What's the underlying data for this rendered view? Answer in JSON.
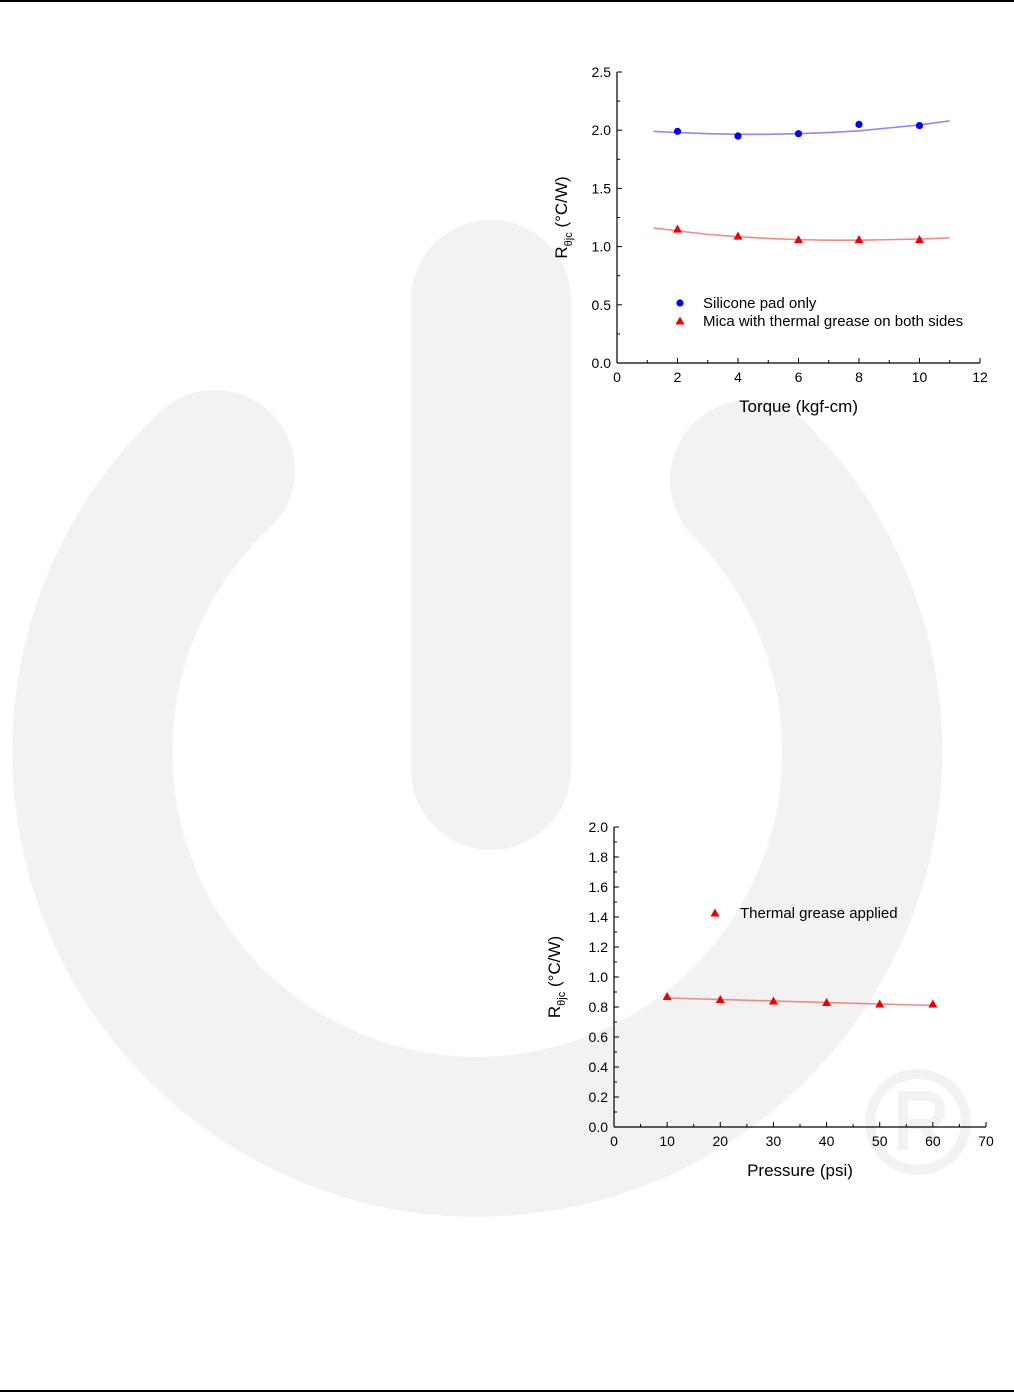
{
  "chart_data": [
    {
      "type": "scatter",
      "xlabel": "Torque (kgf-cm)",
      "ylabel_main": "R",
      "ylabel_sub": "θjc",
      "ylabel_unit": " (°C/W)",
      "xlim": [
        0,
        12
      ],
      "ylim": [
        0.0,
        2.5
      ],
      "xticks": [
        "0",
        "2",
        "4",
        "6",
        "8",
        "10",
        "12"
      ],
      "yticks": [
        "0.0",
        "0.5",
        "1.0",
        "1.5",
        "2.0",
        "2.5"
      ],
      "grid": false,
      "legend_position": "bottom",
      "series": [
        {
          "name": "Silicone pad only",
          "marker": "circle",
          "color": "#0000ee",
          "fit_color": "#8a8af0",
          "x": [
            2,
            4,
            6,
            8,
            10
          ],
          "y": [
            1.99,
            1.95,
            1.97,
            2.05,
            2.04
          ],
          "fit_x": [
            1.2,
            2,
            3,
            4,
            5,
            6,
            7,
            8,
            9,
            10,
            11
          ],
          "fit_y": [
            1.99,
            1.98,
            1.97,
            1.965,
            1.965,
            1.97,
            1.98,
            1.995,
            2.02,
            2.045,
            2.08
          ]
        },
        {
          "name": "Mica with thermal grease on both sides",
          "marker": "triangle",
          "color": "#ee0000",
          "fit_color": "#f08a8a",
          "x": [
            2,
            4,
            6,
            8,
            10
          ],
          "y": [
            1.15,
            1.09,
            1.06,
            1.06,
            1.06
          ],
          "fit_x": [
            1.2,
            2,
            3,
            4,
            5,
            6,
            7,
            8,
            9,
            10,
            11
          ],
          "fit_y": [
            1.16,
            1.135,
            1.105,
            1.085,
            1.07,
            1.06,
            1.055,
            1.055,
            1.06,
            1.065,
            1.075
          ]
        }
      ]
    },
    {
      "type": "scatter",
      "xlabel": "Pressure (psi)",
      "ylabel_main": "R",
      "ylabel_sub": "θjc",
      "ylabel_unit": " (°C/W)",
      "xlim": [
        0,
        70
      ],
      "ylim": [
        0.0,
        2.0
      ],
      "xticks": [
        "0",
        "10",
        "20",
        "30",
        "40",
        "50",
        "60",
        "70"
      ],
      "yticks": [
        "0.0",
        "0.2",
        "0.4",
        "0.6",
        "0.8",
        "1.0",
        "1.2",
        "1.4",
        "1.6",
        "1.8",
        "2.0"
      ],
      "grid": false,
      "legend_position": "top-right",
      "series": [
        {
          "name": "Thermal grease applied",
          "marker": "triangle",
          "color": "#ee0000",
          "fit_color": "#f08a8a",
          "x": [
            10,
            20,
            30,
            40,
            50,
            60
          ],
          "y": [
            0.87,
            0.85,
            0.84,
            0.83,
            0.82,
            0.82
          ],
          "fit_x": [
            10,
            60
          ],
          "fit_y": [
            0.86,
            0.81
          ]
        }
      ]
    }
  ]
}
